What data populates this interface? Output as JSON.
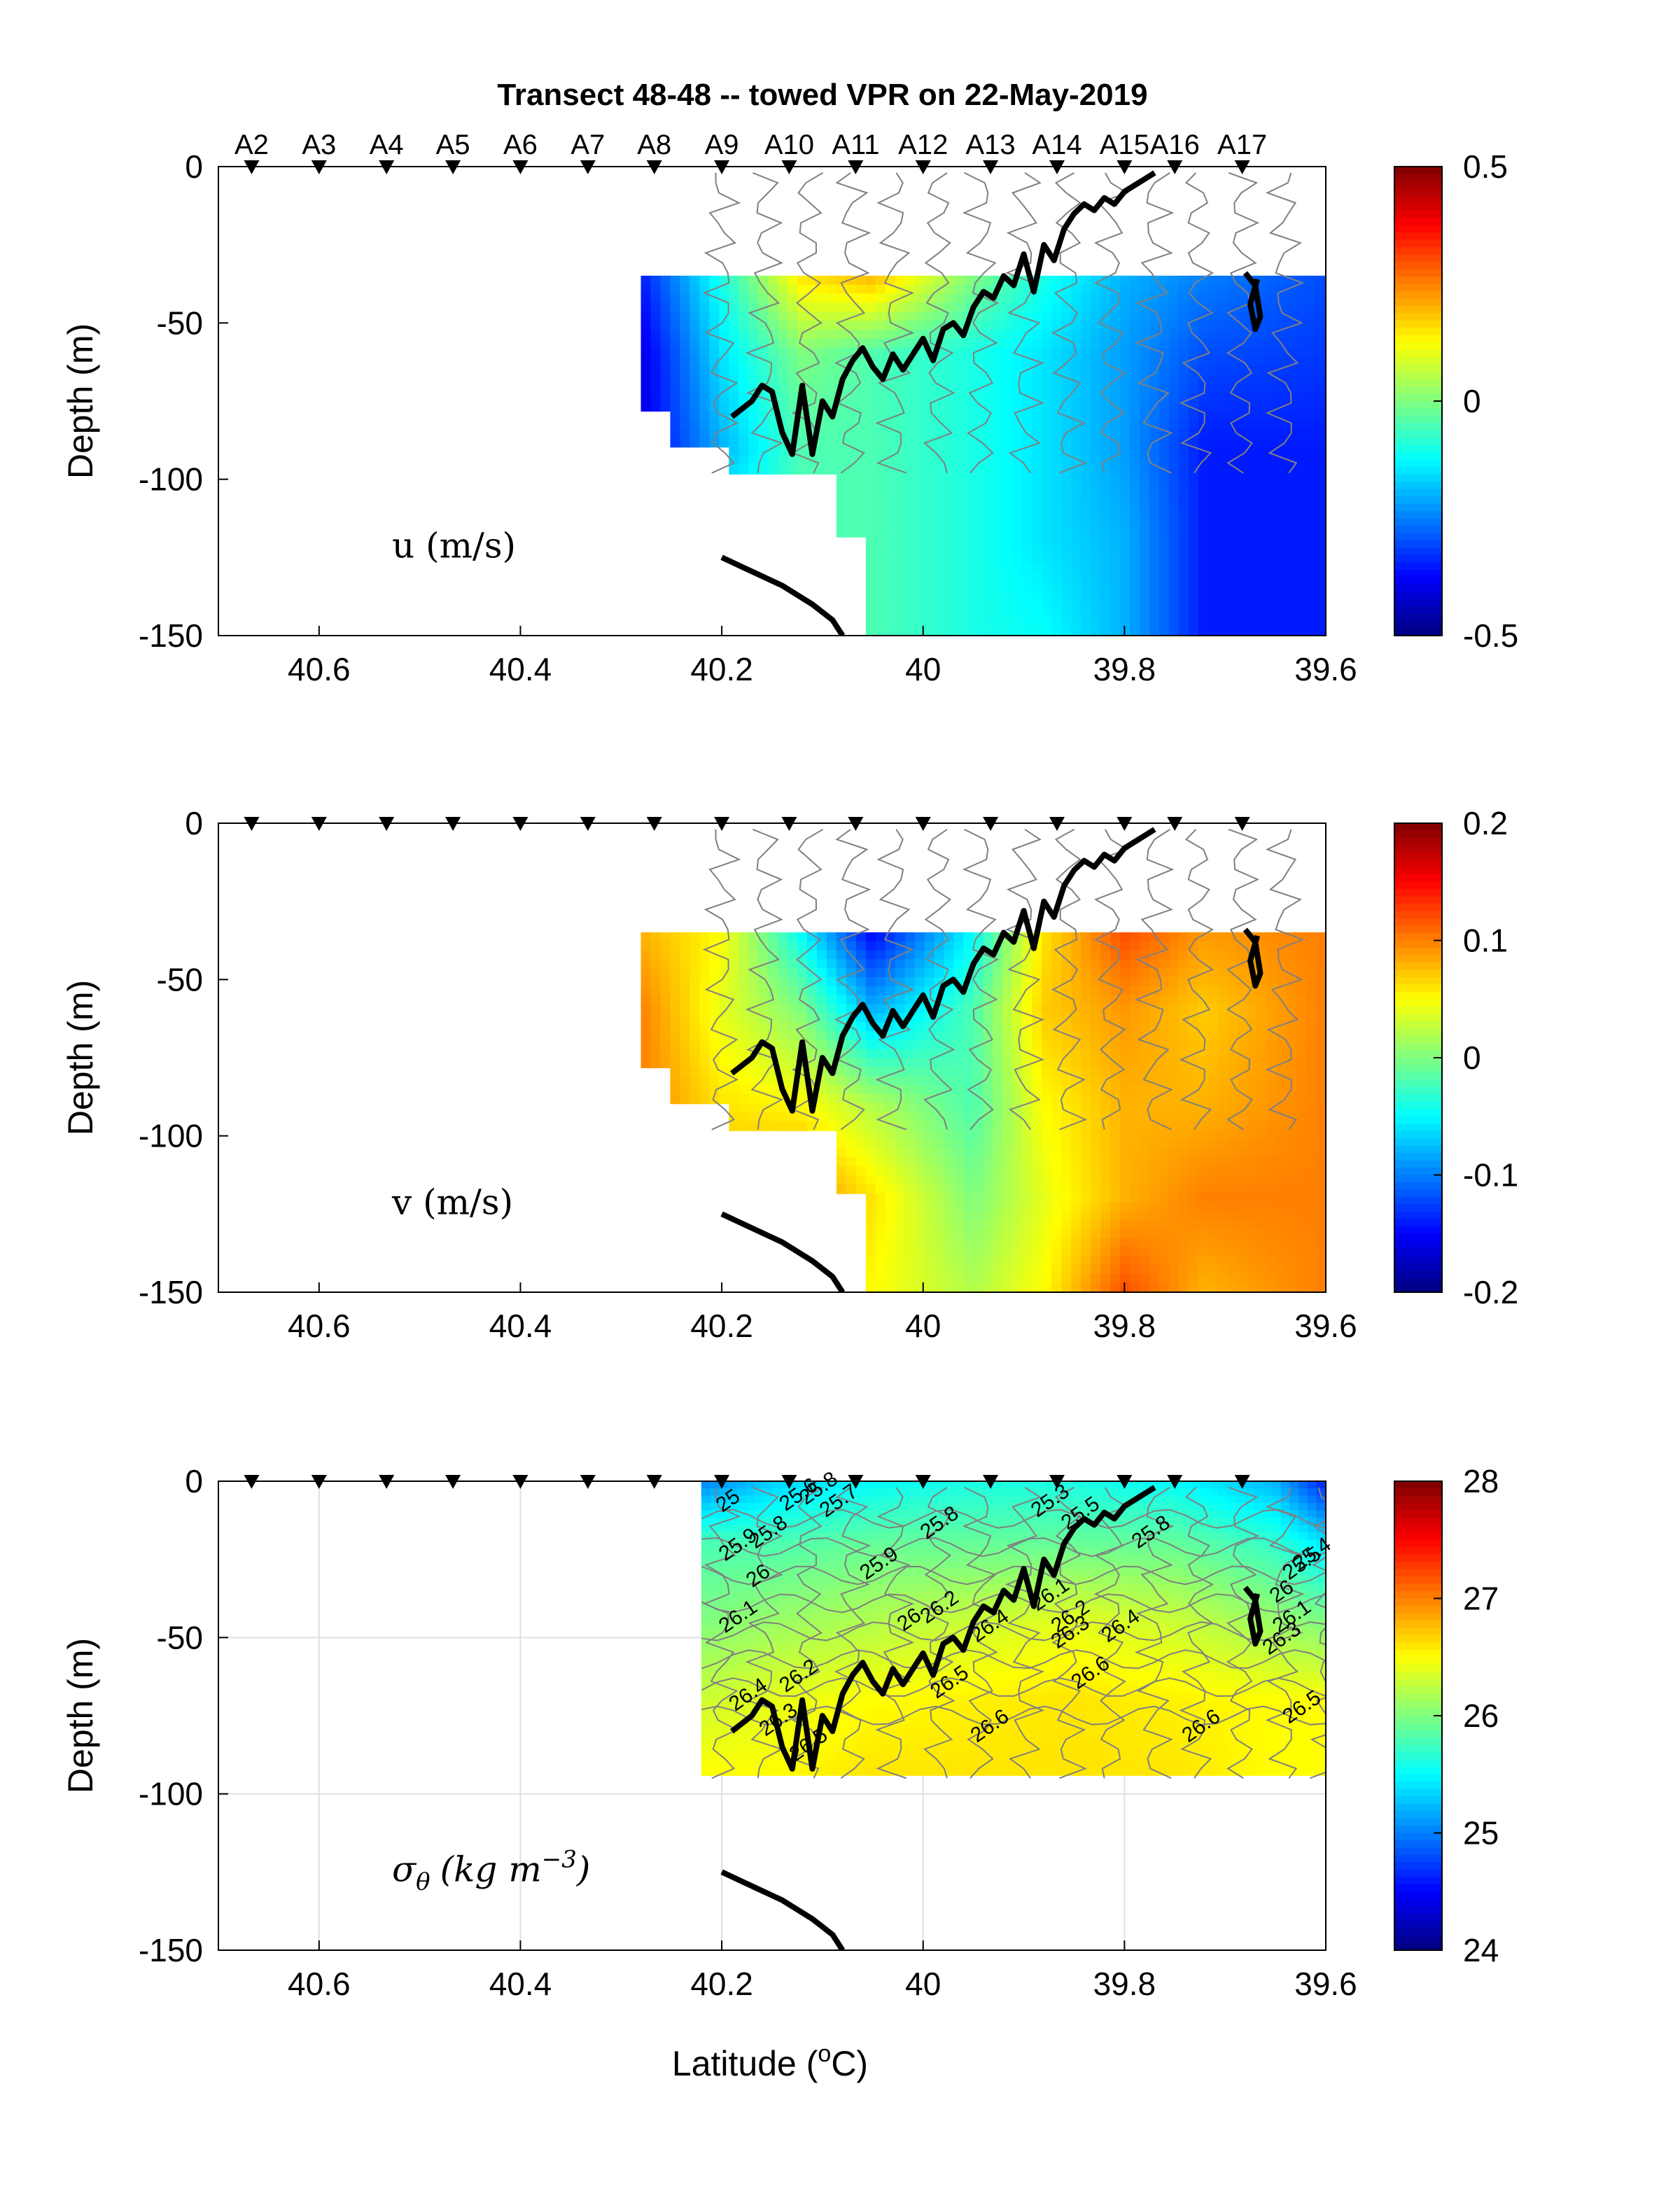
{
  "figure": {
    "title": "Transect 48-48 -- towed VPR on 22-May-2019",
    "xlabel": "Latitude (°C)",
    "xlabel_main": "Latitude (",
    "xlabel_sup": "o",
    "xlabel_end": "C)",
    "ylabel": "Depth (m)",
    "colormap": "jet",
    "colors": {
      "contour": "#808080",
      "track": "#000000",
      "bottom": "#000000",
      "station_marker": "#000000",
      "grid": "#e0e0e0"
    }
  },
  "stations": [
    "A2",
    "A3",
    "A4",
    "A5",
    "A6",
    "A7",
    "A8",
    "A9",
    "A10",
    "A11",
    "A12",
    "A13",
    "A14",
    "A15",
    "A16",
    "A17"
  ],
  "station_lats": [
    40.667,
    40.6,
    40.533,
    40.467,
    40.4,
    40.333,
    40.267,
    40.2,
    40.133,
    40.067,
    40.0,
    39.933,
    39.867,
    39.8,
    39.75,
    39.683
  ],
  "chart_data": [
    {
      "type": "heatmap",
      "panel": "u",
      "label": "u (m/s)",
      "xlim": [
        40.7,
        39.6
      ],
      "ylim": [
        -150,
        0
      ],
      "xticks": [
        40.6,
        40.4,
        40.2,
        40,
        39.8,
        39.6
      ],
      "yticks": [
        0,
        -50,
        -100,
        -150
      ],
      "xticklabels": [
        "40.6",
        "40.4",
        "40.2",
        "40",
        "39.8",
        "39.6"
      ],
      "yticklabels": [
        "0",
        "-50",
        "-100",
        "-150"
      ],
      "clim": [
        -0.5,
        0.5
      ],
      "colorbar_ticks": [
        "0.5",
        "0",
        "-0.5"
      ],
      "colorbar_tick_values": [
        0.5,
        0,
        -0.5
      ],
      "grid": false,
      "data_top_depth": -35,
      "bottom_steps": [
        [
          40.28,
          -80
        ],
        [
          40.25,
          -90
        ],
        [
          40.19,
          -100
        ],
        [
          40.09,
          -120
        ],
        [
          40.055,
          -150
        ]
      ],
      "field_lat": [
        40.28,
        40.2,
        40.12,
        40.05,
        39.95,
        39.88,
        39.8,
        39.72,
        39.6
      ],
      "field_depth": [
        -35,
        -60,
        -90,
        -120,
        -150
      ],
      "field_values": [
        [
          -0.35,
          -0.1,
          0.15,
          0.2,
          0.0,
          -0.1,
          -0.2,
          -0.25,
          -0.3
        ],
        [
          -0.4,
          -0.15,
          0.0,
          -0.05,
          -0.1,
          -0.15,
          -0.22,
          -0.3,
          -0.32
        ],
        [
          -0.4,
          -0.2,
          -0.05,
          -0.05,
          -0.1,
          -0.15,
          -0.22,
          -0.35,
          -0.35
        ],
        [
          -0.4,
          -0.1,
          -0.05,
          -0.05,
          -0.1,
          -0.15,
          -0.2,
          -0.35,
          -0.35
        ],
        [
          -0.4,
          -0.1,
          -0.05,
          -0.05,
          -0.1,
          -0.12,
          -0.2,
          -0.35,
          -0.35
        ]
      ]
    },
    {
      "type": "heatmap",
      "panel": "v",
      "label": "v (m/s)",
      "xlim": [
        40.7,
        39.6
      ],
      "ylim": [
        -150,
        0
      ],
      "xticks": [
        40.6,
        40.4,
        40.2,
        40,
        39.8,
        39.6
      ],
      "yticks": [
        0,
        -50,
        -100,
        -150
      ],
      "xticklabels": [
        "40.6",
        "40.4",
        "40.2",
        "40",
        "39.8",
        "39.6"
      ],
      "yticklabels": [
        "0",
        "-50",
        "-100",
        "-150"
      ],
      "clim": [
        -0.2,
        0.2
      ],
      "colorbar_ticks": [
        "0.2",
        "0.1",
        "0",
        "-0.1",
        "-0.2"
      ],
      "colorbar_tick_values": [
        0.2,
        0.1,
        0,
        -0.1,
        -0.2
      ],
      "grid": false,
      "data_top_depth": -35,
      "bottom_steps": [
        [
          40.28,
          -80
        ],
        [
          40.25,
          -90
        ],
        [
          40.19,
          -100
        ],
        [
          40.09,
          -120
        ],
        [
          40.055,
          -150
        ]
      ],
      "field_lat": [
        40.28,
        40.2,
        40.12,
        40.05,
        39.95,
        39.88,
        39.8,
        39.72,
        39.6
      ],
      "field_depth": [
        -35,
        -60,
        -90,
        -120,
        -150
      ],
      "field_values": [
        [
          0.08,
          0.05,
          -0.05,
          -0.15,
          -0.05,
          0.06,
          0.12,
          0.09,
          0.1
        ],
        [
          0.1,
          0.04,
          0.0,
          -0.08,
          -0.02,
          0.07,
          0.09,
          0.07,
          0.1
        ],
        [
          0.1,
          0.06,
          0.05,
          0.02,
          -0.02,
          0.05,
          0.08,
          0.08,
          0.1
        ],
        [
          0.12,
          0.08,
          0.1,
          0.06,
          0.0,
          0.04,
          0.08,
          0.1,
          0.1
        ],
        [
          0.12,
          0.08,
          0.08,
          0.05,
          0.02,
          0.05,
          0.12,
          0.08,
          0.1
        ]
      ]
    },
    {
      "type": "heatmap",
      "panel": "sigma_theta",
      "label": "σθ (kg m⁻³)",
      "label_math": {
        "sigma": "σ",
        "sub": "θ",
        "units": "(kg m",
        "sup": "−3",
        "close": ")"
      },
      "xlim": [
        40.7,
        39.6
      ],
      "ylim": [
        -150,
        0
      ],
      "xticks": [
        40.6,
        40.4,
        40.2,
        40,
        39.8,
        39.6
      ],
      "yticks": [
        0,
        -50,
        -100,
        -150
      ],
      "xticklabels": [
        "40.6",
        "40.4",
        "40.2",
        "40",
        "39.8",
        "39.6"
      ],
      "yticklabels": [
        "0",
        "-50",
        "-100",
        "-150"
      ],
      "clim": [
        24,
        28
      ],
      "colorbar_ticks": [
        "28",
        "27",
        "26",
        "25",
        "24"
      ],
      "colorbar_tick_values": [
        28,
        27,
        26,
        25,
        24
      ],
      "grid": true,
      "data_bottom_depth": -94,
      "field_lat": [
        40.22,
        40.15,
        40.05,
        39.95,
        39.85,
        39.75,
        39.65,
        39.6
      ],
      "field_depth": [
        0,
        -20,
        -45,
        -70,
        -94
      ],
      "field_values": [
        [
          25.0,
          25.3,
          25.5,
          25.6,
          25.6,
          25.5,
          25.2,
          24.6
        ],
        [
          25.8,
          25.8,
          25.9,
          25.9,
          25.9,
          25.9,
          25.7,
          25.4
        ],
        [
          26.0,
          26.1,
          26.2,
          26.3,
          26.4,
          26.3,
          26.1,
          26.0
        ],
        [
          26.3,
          26.4,
          26.5,
          26.55,
          26.6,
          26.55,
          26.5,
          26.5
        ],
        [
          26.5,
          26.5,
          26.6,
          26.6,
          26.6,
          26.6,
          26.5,
          26.5
        ]
      ],
      "contour_labels": [
        {
          "text": "25",
          "lat": 40.19,
          "depth": -8
        },
        {
          "text": "25.8",
          "lat": 40.1,
          "depth": -4
        },
        {
          "text": "25.6",
          "lat": 40.12,
          "depth": -6
        },
        {
          "text": "25.7",
          "lat": 40.08,
          "depth": -8
        },
        {
          "text": "25.9",
          "lat": 40.18,
          "depth": -22
        },
        {
          "text": "25.8",
          "lat": 40.15,
          "depth": -18
        },
        {
          "text": "26",
          "lat": 40.16,
          "depth": -32
        },
        {
          "text": "26.1",
          "lat": 40.18,
          "depth": -45
        },
        {
          "text": "25.9",
          "lat": 40.04,
          "depth": -28
        },
        {
          "text": "25.8",
          "lat": 39.98,
          "depth": -15
        },
        {
          "text": "25.3",
          "lat": 39.87,
          "depth": -8
        },
        {
          "text": "25.5",
          "lat": 39.84,
          "depth": -12
        },
        {
          "text": "25.8",
          "lat": 39.77,
          "depth": -18
        },
        {
          "text": "26.1",
          "lat": 39.87,
          "depth": -38
        },
        {
          "text": "26.2",
          "lat": 39.85,
          "depth": -45
        },
        {
          "text": "26.3",
          "lat": 39.85,
          "depth": -50
        },
        {
          "text": "26.4",
          "lat": 39.8,
          "depth": -48
        },
        {
          "text": "26",
          "lat": 40.01,
          "depth": -46
        },
        {
          "text": "26.2",
          "lat": 39.98,
          "depth": -42
        },
        {
          "text": "26.4",
          "lat": 39.93,
          "depth": -48
        },
        {
          "text": "26.5",
          "lat": 39.97,
          "depth": -66
        },
        {
          "text": "26.6",
          "lat": 39.93,
          "depth": -80
        },
        {
          "text": "26.6",
          "lat": 39.83,
          "depth": -63
        },
        {
          "text": "26.6",
          "lat": 39.72,
          "depth": -80
        },
        {
          "text": "26.5",
          "lat": 39.62,
          "depth": -74
        },
        {
          "text": "26.2",
          "lat": 40.12,
          "depth": -64
        },
        {
          "text": "26.4",
          "lat": 40.17,
          "depth": -70
        },
        {
          "text": "26.3",
          "lat": 40.14,
          "depth": -78
        },
        {
          "text": "26.5",
          "lat": 40.11,
          "depth": -86
        },
        {
          "text": "26",
          "lat": 39.64,
          "depth": -37
        },
        {
          "text": "25.5",
          "lat": 39.62,
          "depth": -28
        },
        {
          "text": "25.4",
          "lat": 39.61,
          "depth": -25
        },
        {
          "text": "26.1",
          "lat": 39.63,
          "depth": -45
        },
        {
          "text": "26.3",
          "lat": 39.64,
          "depth": -52
        }
      ]
    }
  ],
  "overlays": {
    "tow_track_lat": [
      40.19,
      40.17,
      40.16,
      40.15,
      40.14,
      40.13,
      40.12,
      40.11,
      40.1,
      40.09,
      40.08,
      40.07,
      40.06,
      40.05,
      40.04,
      40.03,
      40.02,
      40.01,
      40.0,
      39.99,
      39.98,
      39.97,
      39.96,
      39.95,
      39.94,
      39.93,
      39.92,
      39.91,
      39.9,
      39.89,
      39.88,
      39.87,
      39.86,
      39.85,
      39.84,
      39.83,
      39.82,
      39.81,
      39.8,
      39.79,
      39.78,
      39.77
    ],
    "tow_track_depth": [
      -80,
      -75,
      -70,
      -72,
      -85,
      -92,
      -70,
      -92,
      -75,
      -80,
      -68,
      -62,
      -58,
      -64,
      -68,
      -60,
      -65,
      -60,
      -55,
      -62,
      -52,
      -50,
      -54,
      -45,
      -40,
      -42,
      -35,
      -38,
      -28,
      -40,
      -25,
      -30,
      -20,
      -15,
      -12,
      -14,
      -10,
      -12,
      -8,
      -6,
      -4,
      -2
    ],
    "tow_loop_lat": [
      39.68,
      39.67,
      39.665,
      39.67,
      39.675,
      39.668
    ],
    "tow_loop_depth": [
      -34,
      -38,
      -48,
      -52,
      -44,
      -36
    ],
    "bottom_lat": [
      40.2,
      40.18,
      40.14,
      40.11,
      40.09,
      40.08
    ],
    "bottom_depth": [
      -125,
      -128,
      -134,
      -140,
      -145,
      -150
    ]
  }
}
